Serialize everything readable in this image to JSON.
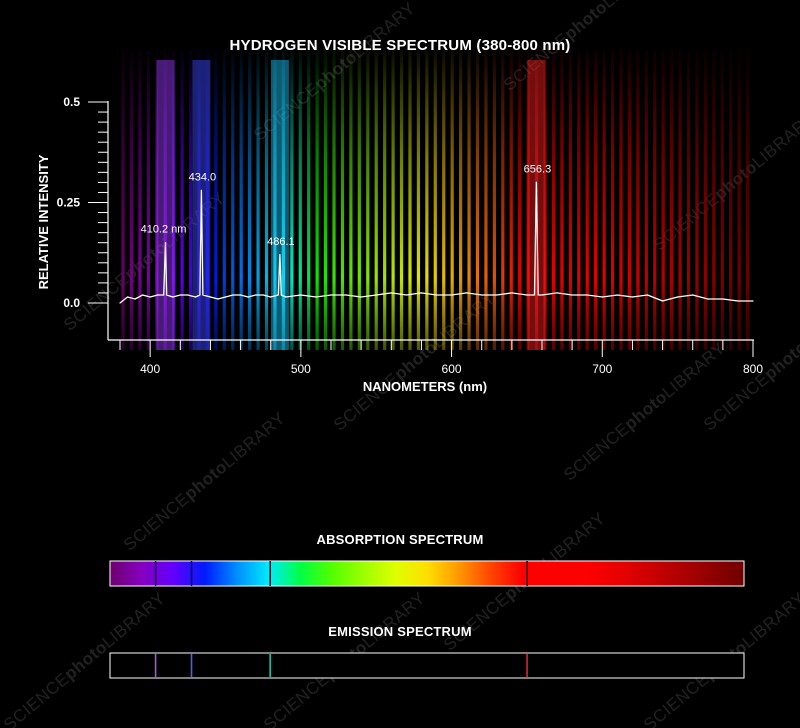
{
  "watermark": {
    "text_a": "SCIENCE",
    "text_b": "photo",
    "text_c": "LIBRARY"
  },
  "colors": {
    "background": "#000000",
    "axis": "#ffffff",
    "trace": "#ffffff"
  },
  "chart_data": {
    "type": "line",
    "title": "HYDROGEN VISIBLE SPECTRUM (380-800 nm)",
    "xlabel": "NANOMETERS (nm)",
    "ylabel": "RELATIVE INTENSITY",
    "xlim": [
      380,
      800
    ],
    "ylim": [
      0,
      0.5
    ],
    "x_ticks": [
      400,
      500,
      600,
      700,
      800
    ],
    "x_tick_labels": [
      "400",
      "500",
      "600",
      "700",
      "800"
    ],
    "y_ticks": [
      0.0,
      0.25,
      0.5
    ],
    "y_tick_labels": [
      "0.0",
      "0.25",
      "0.5"
    ],
    "grid": false,
    "series": [
      {
        "x": [
          380,
          385,
          390,
          395,
          400,
          405,
          409,
          410.2,
          411,
          415,
          420,
          425,
          430,
          433,
          434.0,
          435,
          440,
          445,
          450,
          455,
          460,
          465,
          470,
          475,
          480,
          485,
          486.1,
          487,
          490,
          500,
          510,
          520,
          530,
          540,
          550,
          560,
          570,
          580,
          590,
          600,
          610,
          620,
          630,
          640,
          650,
          655,
          656.3,
          657.5,
          660,
          670,
          680,
          690,
          700,
          710,
          720,
          730,
          740,
          750,
          760,
          770,
          780,
          790,
          800
        ],
        "y": [
          0.0,
          0.015,
          0.01,
          0.02,
          0.015,
          0.02,
          0.02,
          0.15,
          0.02,
          0.015,
          0.02,
          0.02,
          0.015,
          0.02,
          0.28,
          0.02,
          0.015,
          0.01,
          0.015,
          0.02,
          0.02,
          0.015,
          0.02,
          0.02,
          0.015,
          0.02,
          0.12,
          0.02,
          0.015,
          0.02,
          0.015,
          0.02,
          0.02,
          0.015,
          0.02,
          0.025,
          0.02,
          0.025,
          0.02,
          0.02,
          0.025,
          0.02,
          0.02,
          0.025,
          0.02,
          0.02,
          0.3,
          0.02,
          0.02,
          0.025,
          0.02,
          0.02,
          0.015,
          0.02,
          0.015,
          0.02,
          0.005,
          0.015,
          0.02,
          0.01,
          0.01,
          0.005,
          0.005
        ]
      }
    ],
    "peaks": [
      {
        "x": 410.2,
        "y": 0.15,
        "label": "410.2 nm",
        "color": "#9c3cff"
      },
      {
        "x": 434.0,
        "y": 0.28,
        "label": "434.0",
        "color": "#3c4cff"
      },
      {
        "x": 486.1,
        "y": 0.12,
        "label": "486.1",
        "color": "#1ec8ff"
      },
      {
        "x": 656.3,
        "y": 0.3,
        "label": "656.3",
        "color": "#ff2020"
      }
    ]
  },
  "absorption": {
    "title": "ABSORPTION SPECTRUM",
    "lines": [
      410.2,
      434.0,
      486.1,
      656.3
    ],
    "line_color": "#000000"
  },
  "emission": {
    "title": "EMISSION SPECTRUM",
    "lines": [
      {
        "x": 410.2,
        "color": "#9c5bd6"
      },
      {
        "x": 434.0,
        "color": "#5060e8"
      },
      {
        "x": 486.1,
        "color": "#22c0a8"
      },
      {
        "x": 656.3,
        "color": "#e02030"
      }
    ],
    "frame_color": "#ffffff"
  }
}
